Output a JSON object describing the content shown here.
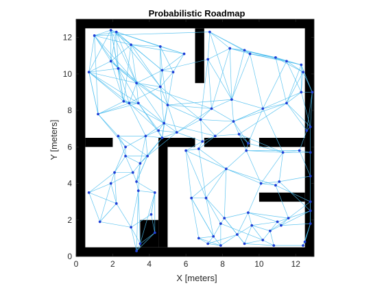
{
  "chart_data": {
    "type": "scatter",
    "title": "Probabilistic Roadmap",
    "xlabel": "X [meters]",
    "ylabel": "Y [meters]",
    "xlim": [
      0,
      13.0
    ],
    "ylim": [
      0,
      13.0
    ],
    "xticks": [
      0,
      2,
      4,
      6,
      8,
      10,
      12
    ],
    "yticks": [
      0,
      2,
      4,
      6,
      8,
      10,
      12
    ],
    "tick_labels_x": [
      "0",
      "2",
      "4",
      "6",
      "8",
      "10",
      "12"
    ],
    "tick_labels_y": [
      "0",
      "2",
      "4",
      "6",
      "8",
      "10",
      "12"
    ],
    "grid": false,
    "legend": "none",
    "colors": {
      "obstacle": "#000000",
      "edge": "#4dbeee",
      "node": "#1f3fd6",
      "axis": "#262626"
    },
    "obstacles": [
      {
        "x0": 0.0,
        "x1": 13.0,
        "y0": 12.5,
        "y1": 13.0
      },
      {
        "x0": 0.0,
        "x1": 13.0,
        "y0": 0.0,
        "y1": 0.5
      },
      {
        "x0": 0.0,
        "x1": 0.5,
        "y0": 0.0,
        "y1": 13.0
      },
      {
        "x0": 12.5,
        "x1": 13.0,
        "y0": 0.0,
        "y1": 13.0
      },
      {
        "x0": 0.5,
        "x1": 2.0,
        "y0": 6.0,
        "y1": 6.5
      },
      {
        "x0": 4.5,
        "x1": 5.0,
        "y0": 0.5,
        "y1": 6.5
      },
      {
        "x0": 5.0,
        "x1": 6.5,
        "y0": 6.0,
        "y1": 6.5
      },
      {
        "x0": 7.0,
        "x1": 9.5,
        "y0": 6.0,
        "y1": 6.5
      },
      {
        "x0": 10.0,
        "x1": 12.5,
        "y0": 6.0,
        "y1": 6.5
      },
      {
        "x0": 6.5,
        "x1": 7.0,
        "y0": 9.5,
        "y1": 12.5
      },
      {
        "x0": 3.5,
        "x1": 4.5,
        "y0": 0.5,
        "y1": 2.0
      },
      {
        "x0": 10.0,
        "x1": 12.5,
        "y0": 3.0,
        "y1": 3.5
      }
    ],
    "nodes": [
      [
        1.0,
        12.1
      ],
      [
        1.9,
        12.4
      ],
      [
        2.2,
        12.3
      ],
      [
        3.0,
        11.6
      ],
      [
        4.6,
        11.5
      ],
      [
        5.9,
        11.1
      ],
      [
        0.7,
        10.1
      ],
      [
        1.9,
        10.7
      ],
      [
        2.3,
        10.3
      ],
      [
        3.3,
        9.5
      ],
      [
        4.7,
        10.2
      ],
      [
        5.3,
        10.1
      ],
      [
        4.6,
        9.3
      ],
      [
        5.0,
        8.3
      ],
      [
        1.2,
        7.8
      ],
      [
        2.6,
        8.5
      ],
      [
        2.9,
        8.4
      ],
      [
        3.4,
        8.4
      ],
      [
        4.8,
        7.3
      ],
      [
        5.5,
        6.8
      ],
      [
        4.5,
        6.9
      ],
      [
        4.7,
        6.5
      ],
      [
        3.8,
        6.6
      ],
      [
        2.7,
        6.0
      ],
      [
        2.3,
        6.6
      ],
      [
        2.7,
        5.5
      ],
      [
        3.9,
        5.5
      ],
      [
        3.5,
        5.1
      ],
      [
        3.1,
        4.6
      ],
      [
        2.1,
        4.6
      ],
      [
        1.9,
        4.0
      ],
      [
        3.3,
        4.1
      ],
      [
        3.4,
        3.6
      ],
      [
        4.3,
        3.5
      ],
      [
        2.2,
        2.9
      ],
      [
        0.7,
        3.5
      ],
      [
        1.3,
        1.9
      ],
      [
        3.0,
        1.6
      ],
      [
        3.3,
        0.3
      ],
      [
        3.5,
        0.7
      ],
      [
        4.3,
        1.3
      ],
      [
        4.1,
        2.3
      ],
      [
        7.3,
        12.3
      ],
      [
        8.4,
        11.4
      ],
      [
        9.2,
        11.3
      ],
      [
        9.5,
        11.1
      ],
      [
        10.9,
        10.9
      ],
      [
        11.5,
        10.7
      ],
      [
        12.3,
        10.5
      ],
      [
        12.4,
        10.1
      ],
      [
        12.3,
        9.0
      ],
      [
        12.9,
        9.0
      ],
      [
        12.8,
        7.1
      ],
      [
        12.6,
        6.9
      ],
      [
        10.2,
        8.1
      ],
      [
        11.5,
        8.4
      ],
      [
        8.5,
        8.6
      ],
      [
        7.4,
        8.1
      ],
      [
        7.2,
        10.8
      ],
      [
        6.8,
        7.5
      ],
      [
        8.6,
        7.4
      ],
      [
        8.9,
        6.7
      ],
      [
        9.4,
        6.2
      ],
      [
        7.6,
        6.6
      ],
      [
        6.9,
        6.3
      ],
      [
        6.7,
        5.9
      ],
      [
        6.0,
        5.8
      ],
      [
        9.3,
        5.8
      ],
      [
        11.3,
        5.7
      ],
      [
        12.8,
        5.7
      ],
      [
        12.2,
        5.8
      ],
      [
        12.8,
        4.4
      ],
      [
        11.1,
        4.1
      ],
      [
        10.1,
        4.0
      ],
      [
        10.9,
        3.9
      ],
      [
        8.2,
        4.8
      ],
      [
        6.3,
        3.2
      ],
      [
        7.1,
        3.2
      ],
      [
        12.8,
        3.0
      ],
      [
        12.8,
        2.5
      ],
      [
        12.8,
        1.8
      ],
      [
        11.0,
        1.9
      ],
      [
        10.6,
        1.4
      ],
      [
        11.2,
        1.7
      ],
      [
        11.6,
        2.1
      ],
      [
        9.4,
        2.4
      ],
      [
        8.1,
        2.1
      ],
      [
        7.9,
        1.8
      ],
      [
        7.5,
        1.1
      ],
      [
        6.7,
        1.0
      ],
      [
        7.2,
        0.7
      ],
      [
        7.9,
        0.6
      ],
      [
        8.8,
        1.2
      ],
      [
        9.2,
        0.7
      ],
      [
        10.2,
        0.9
      ],
      [
        10.8,
        0.6
      ],
      [
        12.4,
        0.6
      ],
      [
        12.5,
        0.8
      ],
      [
        9.6,
        1.7
      ]
    ],
    "edges": [
      [
        0,
        1
      ],
      [
        0,
        2
      ],
      [
        0,
        3
      ],
      [
        0,
        6
      ],
      [
        0,
        7
      ],
      [
        0,
        8
      ],
      [
        0,
        9
      ],
      [
        0,
        14
      ],
      [
        1,
        2
      ],
      [
        1,
        3
      ],
      [
        1,
        4
      ],
      [
        1,
        6
      ],
      [
        1,
        7
      ],
      [
        1,
        9
      ],
      [
        1,
        15
      ],
      [
        2,
        3
      ],
      [
        2,
        4
      ],
      [
        2,
        5
      ],
      [
        2,
        7
      ],
      [
        2,
        8
      ],
      [
        2,
        10
      ],
      [
        2,
        12
      ],
      [
        3,
        4
      ],
      [
        3,
        5
      ],
      [
        3,
        7
      ],
      [
        3,
        9
      ],
      [
        3,
        10
      ],
      [
        3,
        12
      ],
      [
        4,
        5
      ],
      [
        4,
        10
      ],
      [
        4,
        11
      ],
      [
        4,
        12
      ],
      [
        5,
        10
      ],
      [
        5,
        11
      ],
      [
        6,
        7
      ],
      [
        6,
        8
      ],
      [
        6,
        9
      ],
      [
        6,
        14
      ],
      [
        6,
        15
      ],
      [
        6,
        17
      ],
      [
        7,
        8
      ],
      [
        7,
        9
      ],
      [
        7,
        13
      ],
      [
        7,
        15
      ],
      [
        8,
        9
      ],
      [
        8,
        15
      ],
      [
        8,
        16
      ],
      [
        8,
        17
      ],
      [
        9,
        10
      ],
      [
        9,
        12
      ],
      [
        9,
        13
      ],
      [
        9,
        16
      ],
      [
        9,
        18
      ],
      [
        10,
        11
      ],
      [
        10,
        12
      ],
      [
        10,
        13
      ],
      [
        11,
        12
      ],
      [
        11,
        13
      ],
      [
        12,
        13
      ],
      [
        12,
        18
      ],
      [
        13,
        18
      ],
      [
        13,
        19
      ],
      [
        13,
        57
      ],
      [
        13,
        59
      ],
      [
        14,
        15
      ],
      [
        14,
        16
      ],
      [
        14,
        23
      ],
      [
        14,
        24
      ],
      [
        15,
        16
      ],
      [
        15,
        17
      ],
      [
        15,
        18
      ],
      [
        16,
        17
      ],
      [
        16,
        20
      ],
      [
        16,
        22
      ],
      [
        17,
        18
      ],
      [
        17,
        20
      ],
      [
        17,
        21
      ],
      [
        18,
        19
      ],
      [
        18,
        20
      ],
      [
        18,
        21
      ],
      [
        18,
        22
      ],
      [
        19,
        20
      ],
      [
        19,
        21
      ],
      [
        19,
        59
      ],
      [
        19,
        64
      ],
      [
        20,
        21
      ],
      [
        20,
        22
      ],
      [
        21,
        22
      ],
      [
        21,
        26
      ],
      [
        22,
        23
      ],
      [
        22,
        24
      ],
      [
        22,
        26
      ],
      [
        22,
        27
      ],
      [
        23,
        24
      ],
      [
        23,
        25
      ],
      [
        23,
        29
      ],
      [
        24,
        25
      ],
      [
        24,
        26
      ],
      [
        25,
        26
      ],
      [
        25,
        27
      ],
      [
        25,
        28
      ],
      [
        25,
        29
      ],
      [
        26,
        27
      ],
      [
        26,
        31
      ],
      [
        27,
        28
      ],
      [
        27,
        31
      ],
      [
        27,
        32
      ],
      [
        28,
        29
      ],
      [
        28,
        30
      ],
      [
        28,
        31
      ],
      [
        29,
        30
      ],
      [
        29,
        34
      ],
      [
        30,
        34
      ],
      [
        30,
        35
      ],
      [
        30,
        36
      ],
      [
        31,
        32
      ],
      [
        31,
        33
      ],
      [
        32,
        33
      ],
      [
        32,
        37
      ],
      [
        32,
        38
      ],
      [
        32,
        39
      ],
      [
        33,
        39
      ],
      [
        33,
        40
      ],
      [
        33,
        41
      ],
      [
        34,
        35
      ],
      [
        34,
        36
      ],
      [
        34,
        37
      ],
      [
        35,
        36
      ],
      [
        36,
        37
      ],
      [
        37,
        38
      ],
      [
        37,
        39
      ],
      [
        38,
        39
      ],
      [
        39,
        40
      ],
      [
        40,
        41
      ],
      [
        41,
        33
      ],
      [
        17,
        9
      ],
      [
        14,
        6
      ],
      [
        15,
        3
      ],
      [
        16,
        12
      ],
      [
        21,
        13
      ],
      [
        19,
        57
      ],
      [
        42,
        43
      ],
      [
        42,
        44
      ],
      [
        42,
        45
      ],
      [
        42,
        58
      ],
      [
        43,
        44
      ],
      [
        43,
        45
      ],
      [
        43,
        46
      ],
      [
        43,
        58
      ],
      [
        43,
        56
      ],
      [
        44,
        45
      ],
      [
        44,
        46
      ],
      [
        44,
        47
      ],
      [
        45,
        46
      ],
      [
        45,
        47
      ],
      [
        45,
        48
      ],
      [
        45,
        54
      ],
      [
        46,
        47
      ],
      [
        46,
        48
      ],
      [
        46,
        49
      ],
      [
        46,
        55
      ],
      [
        47,
        48
      ],
      [
        47,
        49
      ],
      [
        47,
        50
      ],
      [
        48,
        49
      ],
      [
        48,
        50
      ],
      [
        48,
        51
      ],
      [
        49,
        50
      ],
      [
        49,
        51
      ],
      [
        50,
        51
      ],
      [
        50,
        52
      ],
      [
        50,
        55
      ],
      [
        51,
        52
      ],
      [
        51,
        53
      ],
      [
        52,
        53
      ],
      [
        52,
        55
      ],
      [
        53,
        55
      ],
      [
        54,
        55
      ],
      [
        54,
        56
      ],
      [
        54,
        60
      ],
      [
        55,
        60
      ],
      [
        56,
        57
      ],
      [
        56,
        58
      ],
      [
        56,
        60
      ],
      [
        57,
        58
      ],
      [
        57,
        59
      ],
      [
        57,
        60
      ],
      [
        58,
        59
      ],
      [
        59,
        60
      ],
      [
        59,
        63
      ],
      [
        59,
        64
      ],
      [
        60,
        61
      ],
      [
        60,
        62
      ],
      [
        60,
        63
      ],
      [
        61,
        62
      ],
      [
        61,
        63
      ],
      [
        61,
        67
      ],
      [
        62,
        67
      ],
      [
        63,
        64
      ],
      [
        63,
        65
      ],
      [
        64,
        65
      ],
      [
        64,
        66
      ],
      [
        65,
        66
      ],
      [
        65,
        75
      ],
      [
        66,
        76
      ],
      [
        66,
        77
      ],
      [
        67,
        68
      ],
      [
        67,
        73
      ],
      [
        67,
        75
      ],
      [
        68,
        69
      ],
      [
        68,
        70
      ],
      [
        68,
        72
      ],
      [
        68,
        73
      ],
      [
        69,
        70
      ],
      [
        69,
        71
      ],
      [
        70,
        71
      ],
      [
        71,
        72
      ],
      [
        72,
        73
      ],
      [
        72,
        74
      ],
      [
        73,
        74
      ],
      [
        73,
        75
      ],
      [
        74,
        75
      ],
      [
        75,
        76
      ],
      [
        75,
        77
      ],
      [
        75,
        86
      ],
      [
        76,
        77
      ],
      [
        76,
        89
      ],
      [
        76,
        88
      ],
      [
        77,
        86
      ],
      [
        77,
        87
      ],
      [
        77,
        88
      ],
      [
        78,
        79
      ],
      [
        78,
        80
      ],
      [
        78,
        84
      ],
      [
        79,
        80
      ],
      [
        79,
        83
      ],
      [
        79,
        84
      ],
      [
        80,
        83
      ],
      [
        80,
        96
      ],
      [
        80,
        97
      ],
      [
        81,
        82
      ],
      [
        81,
        83
      ],
      [
        81,
        84
      ],
      [
        81,
        98
      ],
      [
        82,
        83
      ],
      [
        82,
        94
      ],
      [
        82,
        95
      ],
      [
        82,
        98
      ],
      [
        83,
        84
      ],
      [
        84,
        85
      ],
      [
        85,
        86
      ],
      [
        85,
        92
      ],
      [
        85,
        98
      ],
      [
        86,
        87
      ],
      [
        86,
        92
      ],
      [
        87,
        88
      ],
      [
        87,
        91
      ],
      [
        88,
        89
      ],
      [
        88,
        90
      ],
      [
        88,
        91
      ],
      [
        89,
        90
      ],
      [
        90,
        91
      ],
      [
        91,
        92
      ],
      [
        92,
        93
      ],
      [
        93,
        94
      ],
      [
        93,
        98
      ],
      [
        94,
        95
      ],
      [
        94,
        98
      ],
      [
        95,
        96
      ],
      [
        96,
        97
      ],
      [
        97,
        80
      ],
      [
        74,
        78
      ],
      [
        74,
        84
      ],
      [
        72,
        79
      ],
      [
        69,
        52
      ],
      [
        70,
        53
      ],
      [
        71,
        78
      ],
      [
        73,
        85
      ],
      [
        54,
        62
      ],
      [
        54,
        68
      ],
      [
        55,
        61
      ],
      [
        0,
        42
      ],
      [
        9,
        57
      ],
      [
        12,
        59
      ],
      [
        18,
        63
      ],
      [
        10,
        58
      ],
      [
        13,
        56
      ],
      [
        2,
        9
      ],
      [
        1,
        8
      ],
      [
        6,
        16
      ],
      [
        14,
        17
      ],
      [
        26,
        19
      ],
      [
        27,
        21
      ],
      [
        31,
        26
      ],
      [
        35,
        29
      ],
      [
        36,
        34
      ],
      [
        38,
        40
      ],
      [
        37,
        41
      ],
      [
        50,
        54
      ],
      [
        49,
        55
      ],
      [
        47,
        54
      ],
      [
        48,
        55
      ],
      [
        44,
        56
      ],
      [
        45,
        56
      ],
      [
        43,
        57
      ],
      [
        42,
        56
      ],
      [
        60,
        54
      ],
      [
        61,
        68
      ],
      [
        62,
        68
      ],
      [
        67,
        70
      ],
      [
        66,
        75
      ],
      [
        65,
        77
      ],
      [
        76,
        88
      ],
      [
        89,
        91
      ],
      [
        90,
        92
      ],
      [
        85,
        81
      ],
      [
        86,
        93
      ],
      [
        87,
        94
      ],
      [
        92,
        98
      ],
      [
        93,
        95
      ],
      [
        82,
        84
      ]
    ]
  }
}
